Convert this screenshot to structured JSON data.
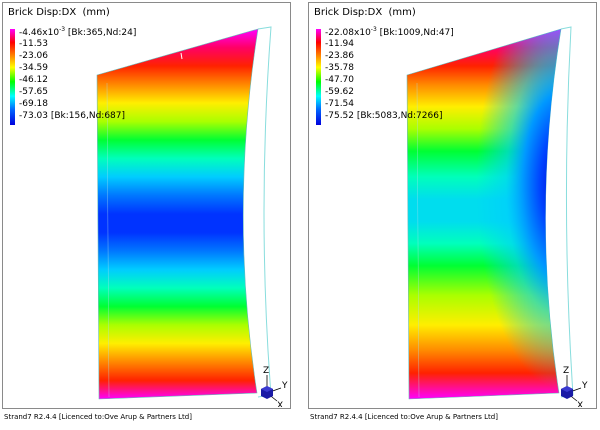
{
  "viewports": [
    {
      "title": "Brick Disp:DX  (mm)",
      "legend": {
        "max_value": "-4.46x10",
        "max_exp": "-3",
        "max_tag": " [Bk:365,Nd:24]",
        "levels": [
          "-11.53",
          "-23.06",
          "-34.59",
          "-46.12",
          "-57.65",
          "-69.18"
        ],
        "min_value": "-73.03",
        "min_tag": " [Bk:156,Nd:687]"
      },
      "triad": {
        "z": "Z",
        "y": "Y",
        "x": "X"
      },
      "status": "Strand7 R2.4.4 [Licenced to:Ove Arup & Partners Ltd]"
    },
    {
      "title": "Brick Disp:DX  (mm)",
      "legend": {
        "max_value": "-22.08x10",
        "max_exp": "-3",
        "max_tag": " [Bk:1009,Nd:47]",
        "levels": [
          "-11.94",
          "-23.86",
          "-35.78",
          "-47.70",
          "-59.62",
          "-71.54"
        ],
        "min_value": "-75.52",
        "min_tag": " [Bk:5083,Nd:7266]"
      },
      "triad": {
        "z": "Z",
        "y": "Y",
        "x": "X"
      },
      "status": "Strand7 R2.4.4 [Licenced to:Ove Arup & Partners Ltd]"
    }
  ],
  "colors": {
    "contour_scale": [
      "#ff00ff",
      "#ff0000",
      "#ff8800",
      "#ffff00",
      "#88ff00",
      "#00ff00",
      "#00ffaa",
      "#00ffff",
      "#00aaff",
      "#0055ff",
      "#0000ff",
      "#0000cc"
    ],
    "outline": "#88dddd",
    "triad_cube": "#1a1aa6"
  }
}
